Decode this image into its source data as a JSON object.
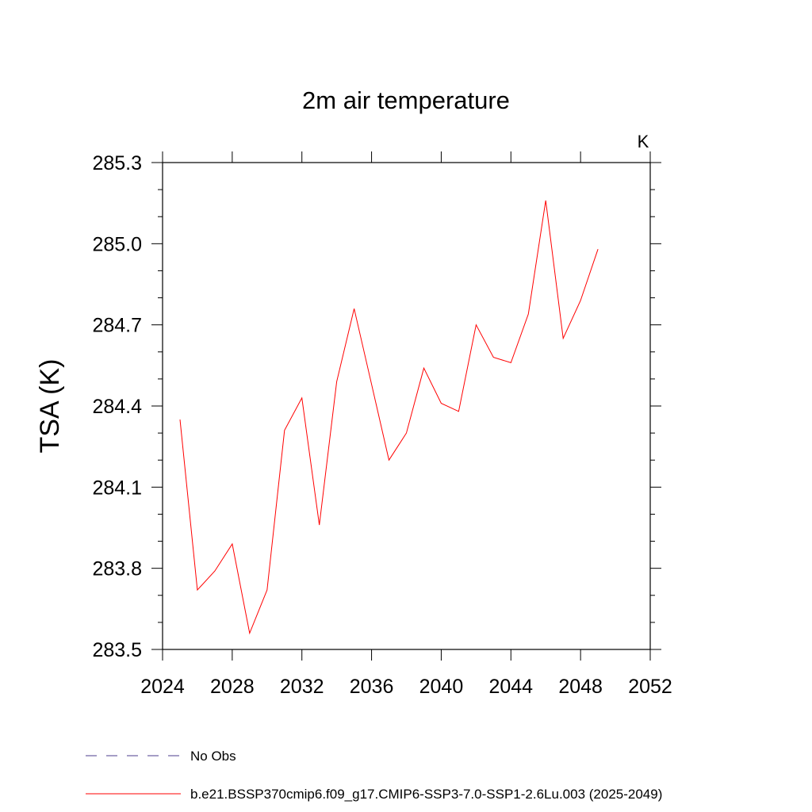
{
  "chart_data": {
    "type": "line",
    "title": "2m air temperature",
    "units_label": "K",
    "ylabel": "TSA  (K)",
    "xlabel": "",
    "xlim": [
      2024,
      2052
    ],
    "ylim": [
      283.5,
      285.3
    ],
    "x_ticks": [
      "2024",
      "2028",
      "2032",
      "2036",
      "2040",
      "2044",
      "2048",
      "2052"
    ],
    "y_ticks": [
      "283.5",
      "283.8",
      "284.1",
      "284.4",
      "284.7",
      "285.0",
      "285.3"
    ],
    "grid": false,
    "series": [
      {
        "name": "b.e21.BSSP370cmip6.f09_g17.CMIP6-SSP3-7.0-SSP1-2.6Lu.003 (2025-2049)",
        "color": "#ff0000",
        "x": [
          2025,
          2026,
          2027,
          2028,
          2029,
          2030,
          2031,
          2032,
          2033,
          2034,
          2035,
          2036,
          2037,
          2038,
          2039,
          2040,
          2041,
          2042,
          2043,
          2044,
          2045,
          2046,
          2047,
          2048,
          2049
        ],
        "y": [
          284.35,
          283.72,
          283.79,
          283.89,
          283.56,
          283.72,
          284.31,
          284.43,
          283.96,
          284.49,
          284.76,
          284.48,
          284.2,
          284.3,
          284.54,
          284.41,
          284.38,
          284.7,
          284.58,
          284.56,
          284.74,
          285.16,
          284.65,
          284.79,
          284.98
        ]
      }
    ],
    "legend": [
      {
        "label": "No Obs",
        "style": "dashed",
        "color": "#4b3c8c"
      },
      {
        "label": "b.e21.BSSP370cmip6.f09_g17.CMIP6-SSP3-7.0-SSP1-2.6Lu.003 (2025-2049)",
        "style": "solid",
        "color": "#ff0000"
      }
    ],
    "legend_placement": "bottom"
  }
}
